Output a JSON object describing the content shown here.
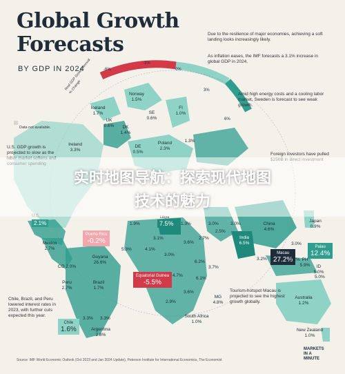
{
  "header": {
    "title_line1": "Global Growth",
    "title_line2": "Forecasts",
    "subtitle": "BY GDP IN 2024"
  },
  "notes": {
    "top_right_1": "Due to the resilience of major economies, achieving a soft landing looks increasingly likely.",
    "top_right_2": "As inflation eases, the IMF forecasts a 3.1% increase in global GDP in 2024.",
    "sweden": "Amid high energy costs and a cooling labor market, Sweden is forecast to see weak growth.",
    "us": "U.S. GDP growth is projected to slow as the labor market softens and consumer spending",
    "foreign": "Foreign investors have pulled $250B in direct investment",
    "chile": "Chile, Brazil, and Peru lowered interest rates in 2023, with further cuts expected this year.",
    "macau": "Tourism-hotspot Macau is projected to see the highest growth globally.",
    "data_na": "Data not available."
  },
  "gauge": {
    "axis_label": "Real GDP Growth Annual % Change",
    "ticks": [
      "-6%",
      "-3%",
      "0%",
      "3%",
      "6%"
    ]
  },
  "banner": {
    "line1": "实时地图导航：探索现代地图",
    "line2": "技术的魅力"
  },
  "source": "Source: IMF World Economic Outlook (Oct 2023 and Jan 2024 Update), Peterson Institute for International Economics, The Economist",
  "logo": {
    "line1": "MARKETS",
    "line2": "IN A",
    "line3": "MINUTE"
  },
  "colors": {
    "positive_dark": "#2f9e8f",
    "positive_light": "#8fd3c6",
    "negative": "#d23a4a",
    "negative_light": "#f2a7ae",
    "background": "#f4f1ea",
    "na": "#d9d6cf"
  },
  "chart_data": {
    "type": "map",
    "title": "Global Growth Forecasts",
    "subtitle": "BY GDP IN 2024",
    "unit": "%",
    "scale": {
      "min": -6,
      "max": 6
    },
    "countries": [
      {
        "name": "Iceland",
        "value": "1.7%"
      },
      {
        "name": "Norway",
        "value": "1.5%"
      },
      {
        "name": "FI",
        "value": "1.0%"
      },
      {
        "name": "SE",
        "value": "0.6%"
      },
      {
        "name": "UK",
        "value": "0.6%"
      },
      {
        "name": "DK",
        "value": "1.4%"
      },
      {
        "name": "Ireland",
        "value": "3.3%"
      },
      {
        "name": "DE",
        "value": "0.5%"
      },
      {
        "name": "Poland",
        "value": "2.3%"
      },
      {
        "name": "",
        "value": "1.3%"
      },
      {
        "name": "U.S.",
        "value": "2.1%"
      },
      {
        "name": "Mexico",
        "value": "2.7%"
      },
      {
        "name": "Puerto Rico",
        "value": "-0.2%"
      },
      {
        "name": "Guyana",
        "value": "26.6%"
      },
      {
        "name": "CO",
        "value": "2.0%"
      },
      {
        "name": "Peru",
        "value": "2.7%"
      },
      {
        "name": "Brazil",
        "value": "1.7%"
      },
      {
        "name": "Chile",
        "value": "1.6%"
      },
      {
        "name": "Argentina",
        "value": "2.8%"
      },
      {
        "name": "Libya",
        "value": "7.5%"
      },
      {
        "name": "Equatorial Guinea",
        "value": "-5.5%"
      },
      {
        "name": "China",
        "value": "4.6%"
      },
      {
        "name": "India",
        "value": "6.5%"
      },
      {
        "name": "Japan",
        "value": "0.9%"
      },
      {
        "name": "Macau",
        "value": "27.2%"
      },
      {
        "name": "Palau",
        "value": "12.4%"
      },
      {
        "name": "PH",
        "value": "5.9%"
      },
      {
        "name": "ID",
        "value": "5.0%"
      },
      {
        "name": "Australia",
        "value": "1.2%"
      },
      {
        "name": "New Zealand",
        "value": "1.0%"
      },
      {
        "name": "South Africa",
        "value": "1.0%"
      },
      {
        "name": "MG",
        "value": "4.8%"
      }
    ],
    "map_values": [
      "1.9%",
      "3.1%",
      "3.6%",
      "4.1%",
      "5.3%",
      "3.0%",
      "2.7%",
      "6.2%",
      "4.7%",
      "6.1%",
      "3.6%",
      "3.3%",
      "2.2%",
      "3.0%",
      "5.0%",
      "3.2%",
      "3.7%",
      "2.9%",
      "3.0%",
      "1.3%",
      "3.0%",
      "2.5%",
      "3.3%"
    ]
  }
}
